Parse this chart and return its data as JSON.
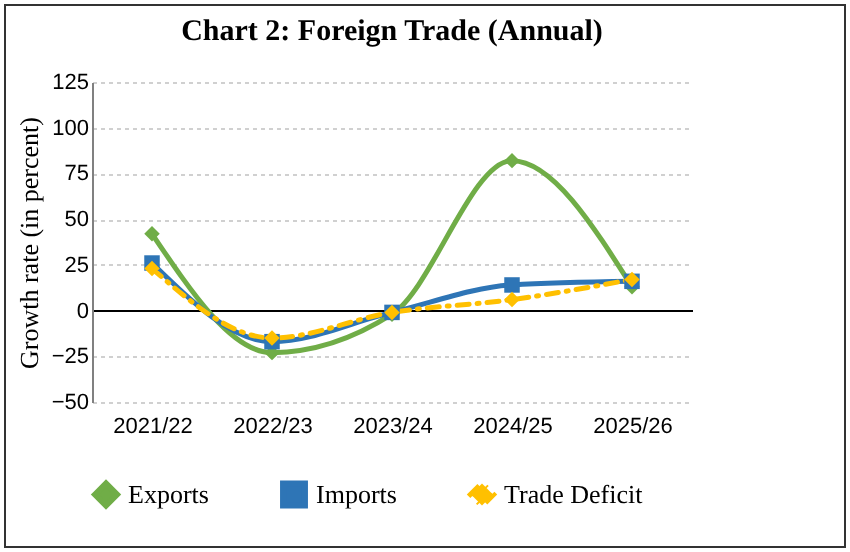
{
  "chart_data": {
    "type": "line",
    "title": "Chart 2: Foreign Trade (Annual)",
    "ylabel": "Growth rate (in percent)",
    "categories": [
      "2021/22",
      "2022/23",
      "2023/24",
      "2024/25",
      "2025/26"
    ],
    "series": [
      {
        "name": "Exports",
        "color": "#70ad47",
        "values": [
          42,
          -23,
          -2,
          82,
          13
        ]
      },
      {
        "name": "Imports",
        "color": "#2e75b6",
        "values": [
          26,
          -17,
          -1,
          14,
          16
        ],
        "marker": "square"
      },
      {
        "name": "Trade Deficit",
        "color": "#ffc000",
        "values": [
          23,
          -15,
          -1,
          6,
          17
        ],
        "line_style": "dashed"
      }
    ],
    "ylim": [
      -50,
      125
    ],
    "yticks": [
      -50,
      -25,
      0,
      25,
      50,
      75,
      100,
      125
    ],
    "grid": "y",
    "legend": "bottom",
    "line_style": "solid",
    "marker": "diamond"
  }
}
